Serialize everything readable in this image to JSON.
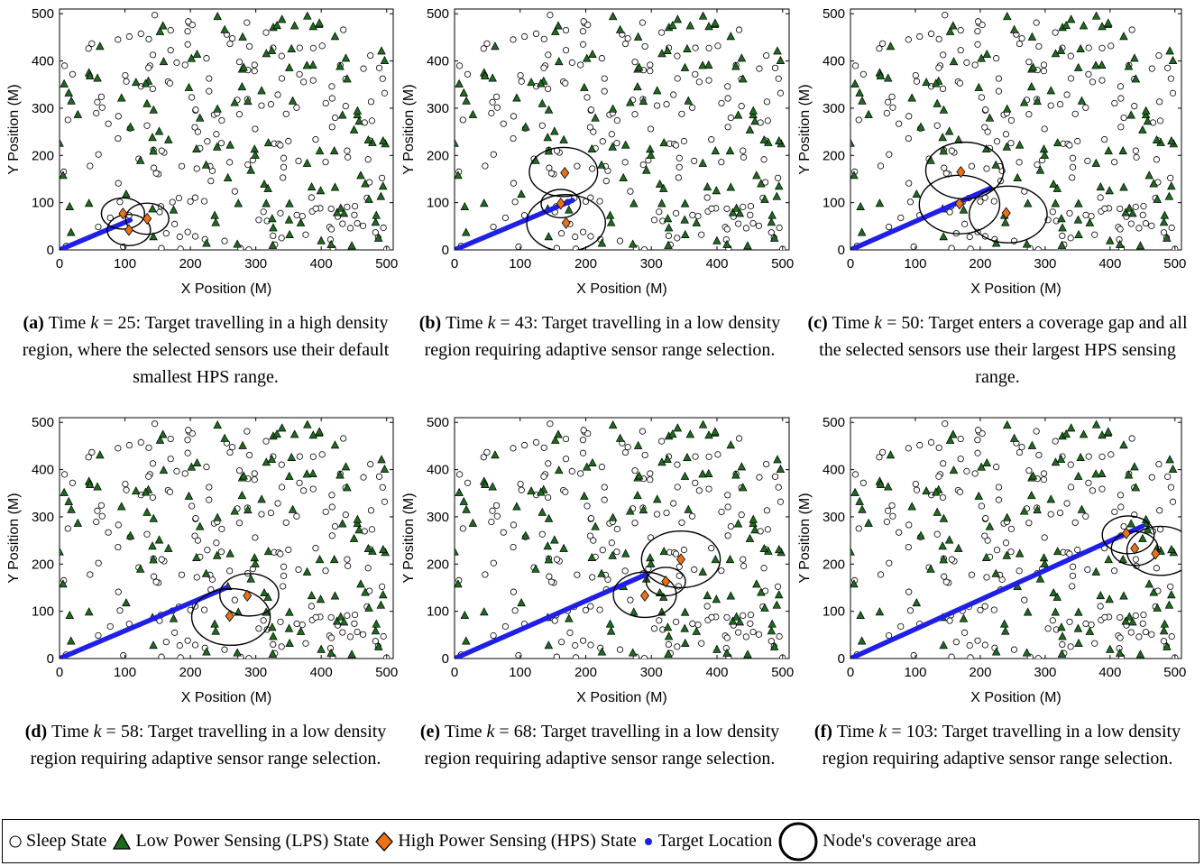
{
  "legend": {
    "sleep": "Sleep State",
    "lps": "Low Power Sensing (LPS) State",
    "hps": "High Power Sensing (HPS) State",
    "target": "Target Location",
    "coverage": "Node's coverage area"
  },
  "colors": {
    "lps": "#1e6b1e",
    "hps": "#e8711a",
    "target": "#1f1fe6",
    "sleep": "#ffffff"
  },
  "chart_data": [
    {
      "type": "scatter",
      "panel": "(a)",
      "k": "25",
      "caption_text": "Target travelling in a high density region, where the selected sensors use their default smallest HPS range.",
      "xlabel": "X Position (M)",
      "ylabel": "Y Position (M)",
      "xlim": [
        0,
        510
      ],
      "ylim": [
        0,
        510
      ],
      "xticks": [
        0,
        100,
        200,
        300,
        400,
        500
      ],
      "yticks": [
        0,
        100,
        200,
        300,
        400,
        500
      ],
      "target_path": [
        [
          0,
          0
        ],
        [
          108,
          63
        ]
      ],
      "hps_nodes": [
        [
          97,
          77
        ],
        [
          134,
          66
        ],
        [
          106,
          42
        ]
      ],
      "coverage": [
        [
          97,
          77,
          33
        ],
        [
          134,
          66,
          33
        ],
        [
          106,
          42,
          33
        ]
      ]
    },
    {
      "type": "scatter",
      "panel": "(b)",
      "k": "43",
      "caption_text": "Target travelling in a low density region requiring adaptive sensor range selection.",
      "xlabel": "X Position (M)",
      "ylabel": "Y Position (M)",
      "xlim": [
        0,
        510
      ],
      "ylim": [
        0,
        510
      ],
      "xticks": [
        0,
        100,
        200,
        300,
        400,
        500
      ],
      "yticks": [
        0,
        100,
        200,
        300,
        400,
        500
      ],
      "target_path": [
        [
          0,
          0
        ],
        [
          180,
          105
        ]
      ],
      "hps_nodes": [
        [
          168,
          163
        ],
        [
          162,
          98
        ],
        [
          170,
          57
        ]
      ],
      "coverage": [
        [
          166,
          165,
          52
        ],
        [
          162,
          98,
          30
        ],
        [
          170,
          57,
          60
        ]
      ]
    },
    {
      "type": "scatter",
      "panel": "(c)",
      "k": "50",
      "caption_text": "Target enters a coverage gap and all the selected sensors use their largest HPS sensing range.",
      "xlabel": "X Position (M)",
      "ylabel": "Y Position (M)",
      "xlim": [
        0,
        510
      ],
      "ylim": [
        0,
        510
      ],
      "xticks": [
        0,
        100,
        200,
        300,
        400,
        500
      ],
      "yticks": [
        0,
        100,
        200,
        300,
        400,
        500
      ],
      "target_path": [
        [
          0,
          0
        ],
        [
          215,
          130
        ]
      ],
      "hps_nodes": [
        [
          170,
          165
        ],
        [
          240,
          78
        ],
        [
          168,
          98
        ]
      ],
      "coverage": [
        [
          176,
          168,
          60
        ],
        [
          168,
          96,
          62
        ],
        [
          243,
          75,
          60
        ]
      ]
    },
    {
      "type": "scatter",
      "panel": "(d)",
      "k": "58",
      "caption_text": "Target travelling in a low density region requiring adaptive sensor range selection.",
      "xlabel": "X Position (M)",
      "ylabel": "Y Position (M)",
      "xlim": [
        0,
        510
      ],
      "ylim": [
        0,
        510
      ],
      "xticks": [
        0,
        100,
        200,
        300,
        400,
        500
      ],
      "yticks": [
        0,
        100,
        200,
        300,
        400,
        500
      ],
      "target_path": [
        [
          0,
          0
        ],
        [
          255,
          150
        ]
      ],
      "hps_nodes": [
        [
          287,
          133
        ],
        [
          260,
          90
        ]
      ],
      "coverage": [
        [
          290,
          135,
          45
        ],
        [
          262,
          88,
          60
        ]
      ]
    },
    {
      "type": "scatter",
      "panel": "(e)",
      "k": "68",
      "caption_text": "Target travelling in a low density region requiring adaptive sensor range selection.",
      "xlabel": "X Position (M)",
      "ylabel": "Y Position (M)",
      "xlim": [
        0,
        510
      ],
      "ylim": [
        0,
        510
      ],
      "xticks": [
        0,
        100,
        200,
        300,
        400,
        500
      ],
      "yticks": [
        0,
        100,
        200,
        300,
        400,
        500
      ],
      "target_path": [
        [
          0,
          0
        ],
        [
          292,
          178
        ]
      ],
      "hps_nodes": [
        [
          345,
          210
        ],
        [
          322,
          163
        ],
        [
          290,
          133
        ]
      ],
      "coverage": [
        [
          345,
          210,
          60
        ],
        [
          322,
          163,
          30
        ],
        [
          290,
          135,
          48
        ]
      ]
    },
    {
      "type": "scatter",
      "panel": "(f)",
      "k": "103",
      "caption_text": "Target travelling in a low density region requiring adaptive sensor range selection.",
      "xlabel": "X Position (M)",
      "ylabel": "Y Position (M)",
      "xlim": [
        0,
        510
      ],
      "ylim": [
        0,
        510
      ],
      "xticks": [
        0,
        100,
        200,
        300,
        400,
        500
      ],
      "yticks": [
        0,
        100,
        200,
        300,
        400,
        500
      ],
      "target_path": [
        [
          0,
          0
        ],
        [
          450,
          280
        ]
      ],
      "hps_nodes": [
        [
          425,
          265
        ],
        [
          438,
          233
        ],
        [
          470,
          222
        ]
      ],
      "coverage": [
        [
          428,
          262,
          40
        ],
        [
          438,
          233,
          36
        ],
        [
          478,
          228,
          52
        ]
      ]
    }
  ]
}
